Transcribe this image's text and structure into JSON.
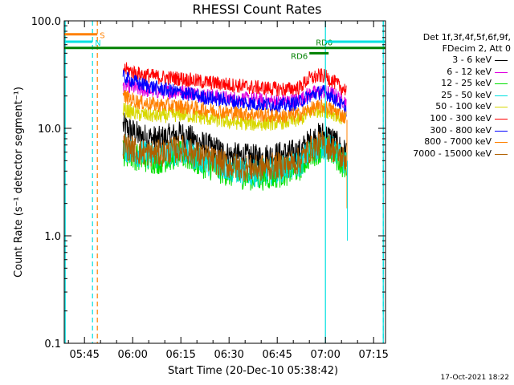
{
  "chart_data": {
    "type": "line",
    "title": "RHESSI Count Rates",
    "xlabel": "Start Time (20-Dec-10 05:38:42)",
    "ylabel": "Count Rate (s⁻¹ detector segment⁻¹)",
    "yscale": "log",
    "ylim": [
      0.1,
      100.0
    ],
    "xlim_minutes": [
      38.7,
      138.7
    ],
    "x_ticks": [
      {
        "label": "05:45",
        "minute": 45
      },
      {
        "label": "06:00",
        "minute": 60
      },
      {
        "label": "06:15",
        "minute": 75
      },
      {
        "label": "06:30",
        "minute": 90
      },
      {
        "label": "06:45",
        "minute": 105
      },
      {
        "label": "07:00",
        "minute": 120
      },
      {
        "label": "07:15",
        "minute": 135
      }
    ],
    "y_ticks": [
      {
        "label": "100.0",
        "value": 100.0
      },
      {
        "label": "10.0",
        "value": 10.0
      },
      {
        "label": "1.0",
        "value": 1.0
      },
      {
        "label": "0.1",
        "value": 0.1
      }
    ],
    "series": [
      {
        "name": "3 - 6 keV",
        "color": "#000000",
        "x": [
          57,
          62,
          68,
          75,
          82,
          90,
          98,
          103,
          108,
          112,
          115,
          119,
          122,
          124,
          125.5,
          126.5
        ],
        "values": [
          10.5,
          8.5,
          7.8,
          8.8,
          7.0,
          5.6,
          5.3,
          5.5,
          5.8,
          6.0,
          7.5,
          8.8,
          8.0,
          6.8,
          6.0,
          6.0
        ]
      },
      {
        "name": "6 - 12 keV",
        "color": "#e000e0",
        "x": [
          57,
          62,
          68,
          75,
          82,
          90,
          98,
          103,
          108,
          112,
          115,
          119,
          122,
          124,
          125.5,
          126.5
        ],
        "values": [
          25.0,
          23.0,
          22.0,
          22.0,
          20.5,
          19.0,
          18.5,
          18.0,
          18.0,
          18.5,
          21.0,
          22.0,
          21.0,
          19.5,
          18.0,
          18.0
        ]
      },
      {
        "name": "12 - 25 keV",
        "color": "#00e000",
        "x": [
          57,
          62,
          68,
          75,
          82,
          90,
          98,
          103,
          108,
          112,
          115,
          119,
          122,
          124,
          125.5,
          126.5
        ],
        "values": [
          6.0,
          5.3,
          5.0,
          5.7,
          4.6,
          3.8,
          3.5,
          3.6,
          3.9,
          4.3,
          5.6,
          6.5,
          6.0,
          5.2,
          4.6,
          4.6
        ]
      },
      {
        "name": "25 - 50 keV",
        "color": "#00e0e0",
        "x": [
          57,
          62,
          68,
          75,
          82,
          90,
          98,
          103,
          108,
          112,
          115,
          119,
          122,
          124,
          125.5,
          126.5
        ],
        "values": [
          6.6,
          5.8,
          5.5,
          6.2,
          5.0,
          4.2,
          3.8,
          4.0,
          4.3,
          4.6,
          6.0,
          7.0,
          6.5,
          5.6,
          5.0,
          5.0
        ]
      },
      {
        "name": "50 - 100 keV",
        "color": "#d8d800",
        "x": [
          57,
          62,
          68,
          75,
          82,
          90,
          98,
          103,
          108,
          112,
          115,
          119,
          122,
          124,
          125.5,
          126.5
        ],
        "values": [
          15.0,
          13.5,
          13.0,
          13.5,
          12.5,
          11.5,
          11.0,
          11.2,
          11.5,
          12.0,
          14.0,
          15.0,
          14.0,
          13.0,
          12.0,
          12.0
        ]
      },
      {
        "name": "100 - 300 keV",
        "color": "#ff0000",
        "x": [
          57,
          62,
          68,
          75,
          82,
          90,
          98,
          103,
          108,
          112,
          115,
          119,
          122,
          124,
          125.5,
          126.5
        ],
        "values": [
          36.0,
          32.0,
          30.0,
          29.0,
          27.0,
          25.5,
          24.0,
          23.5,
          23.0,
          24.0,
          29.0,
          31.0,
          28.0,
          25.0,
          23.5,
          23.0
        ]
      },
      {
        "name": "300 - 800 keV",
        "color": "#0000ff",
        "x": [
          57,
          62,
          68,
          75,
          82,
          90,
          98,
          103,
          108,
          112,
          115,
          119,
          122,
          124,
          125.5,
          126.5
        ],
        "values": [
          30.0,
          26.0,
          23.5,
          21.5,
          19.5,
          18.0,
          17.0,
          16.5,
          16.5,
          17.5,
          20.0,
          22.0,
          20.0,
          17.5,
          16.0,
          15.0
        ]
      },
      {
        "name": "800 - 7000 keV",
        "color": "#ff8000",
        "x": [
          57,
          62,
          68,
          75,
          82,
          90,
          98,
          103,
          108,
          112,
          115,
          119,
          122,
          124,
          125.5,
          126.5
        ],
        "values": [
          20.0,
          17.5,
          16.5,
          16.0,
          15.0,
          14.0,
          13.5,
          13.0,
          13.0,
          13.5,
          15.0,
          16.0,
          15.0,
          14.0,
          13.0,
          12.5
        ]
      },
      {
        "name": "7000 - 15000 keV",
        "color": "#b06000",
        "x": [
          57,
          62,
          68,
          75,
          82,
          90,
          98,
          103,
          108,
          112,
          115,
          119,
          122,
          124,
          125.5,
          126.5
        ],
        "values": [
          7.0,
          6.0,
          5.8,
          6.5,
          5.4,
          4.5,
          4.2,
          4.4,
          4.6,
          5.0,
          6.3,
          7.2,
          6.6,
          5.8,
          5.2,
          5.2
        ]
      }
    ],
    "annotations": [
      {
        "label": "S",
        "color": "#ff8000",
        "y": 75.0,
        "x_start": 38.7,
        "x_end": 49.0
      },
      {
        "label": "N",
        "color": "#00e0e0",
        "y": 64.0,
        "x_start": 38.7,
        "x_end": 47.5
      },
      {
        "label": "RD6",
        "color": "#008000",
        "y": 50.0,
        "x_start": 115.0,
        "x_end": 121.0
      },
      {
        "label": "RD0",
        "color": "#008000",
        "y": 56.0,
        "x_start": 38.7,
        "x_end": 138.7
      }
    ],
    "night_markers_minutes": [
      39.0,
      120.0,
      138.0
    ],
    "saa_markers_minutes": [
      47.5,
      49.0,
      138.0
    ],
    "legend_header": [
      "Det 1f,3f,4f,5f,6f,9f,",
      "FDecim 2, Att 0"
    ],
    "timestamp": "17-Oct-2021 18:22"
  }
}
